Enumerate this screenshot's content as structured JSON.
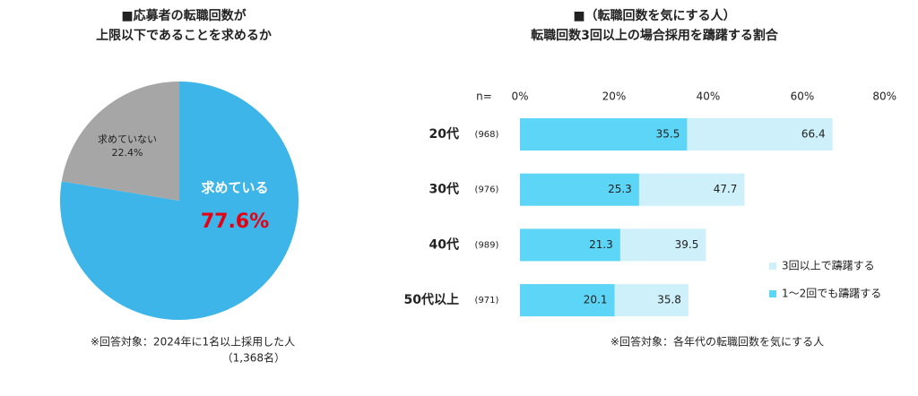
{
  "chart_data": [
    {
      "type": "pie",
      "title": [
        "■応募者の転職回数が",
        "上限以下であることを求めるか"
      ],
      "categories": [
        "求めている",
        "求めていない"
      ],
      "values": [
        77.6,
        22.4
      ],
      "value_labels": [
        "77.6%",
        "22.4%"
      ],
      "colors": [
        "#3db5e9",
        "#a6a6a6"
      ],
      "note": [
        "※回答対象：2024年に1名以上採用した人",
        "（1,368名）"
      ]
    },
    {
      "type": "bar",
      "title": [
        "■（転職回数を気にする人）",
        "転職回数3回以上の場合採用を躊躇する割合"
      ],
      "n_header": "n=",
      "categories": [
        "20代",
        "30代",
        "40代",
        "50代以上"
      ],
      "n_labels": [
        "(968)",
        "(976)",
        "(989)",
        "(971)"
      ],
      "series": [
        {
          "name": "3回以上で躊躇する",
          "color": "#cdf0fb",
          "values": [
            66.4,
            47.7,
            39.5,
            35.8
          ]
        },
        {
          "name": "1～2回でも躊躇する",
          "color": "#5dd5f7",
          "values": [
            35.5,
            25.3,
            21.3,
            20.1
          ]
        }
      ],
      "xlim": [
        0,
        80
      ],
      "xticks": [
        {
          "value": 0,
          "label": "0%"
        },
        {
          "value": 20,
          "label": "20%"
        },
        {
          "value": 40,
          "label": "40%"
        },
        {
          "value": 60,
          "label": "60%"
        },
        {
          "value": 80,
          "label": "80%"
        }
      ],
      "note": "※回答対象：各年代の転職回数を気にする人"
    }
  ]
}
